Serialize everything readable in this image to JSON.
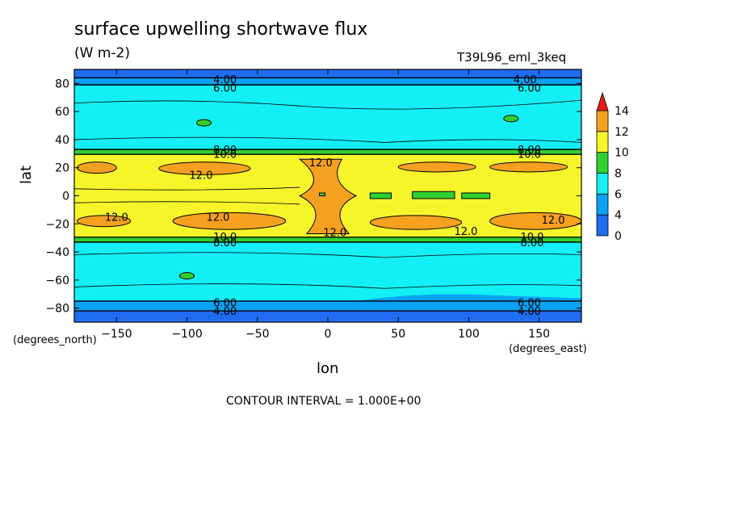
{
  "title": "surface upwelling shortwave flux",
  "units": "(W m-2)",
  "dataset": "T39L96_eml_3keq",
  "xlabel": "lon",
  "ylabel": "lat",
  "x_units": "(degrees_east)",
  "y_units": "(degrees_north)",
  "footer": "CONTOUR INTERVAL = 1.000E+00",
  "colors": {
    "c0_4": "#1f6cf0",
    "c4_6": "#0aa2f5",
    "c6_8": "#12f0f5",
    "c8_10": "#2fd12f",
    "c10_12": "#f5f52a",
    "c12_14": "#f5a01e",
    "c14plus": "#e81a1a"
  },
  "chart_data": {
    "type": "heatmap",
    "subtype": "filled contour map",
    "xlim": [
      -180,
      180
    ],
    "ylim": [
      -90,
      90
    ],
    "x_ticks": [
      -150,
      -100,
      -50,
      0,
      50,
      100,
      150
    ],
    "y_ticks": [
      -80,
      -60,
      -40,
      -20,
      0,
      20,
      40,
      60,
      80
    ],
    "colorbar": {
      "levels": [
        0,
        4,
        6,
        8,
        10,
        12,
        14
      ],
      "tick_labels": [
        "0",
        "4",
        "6",
        "8",
        "10",
        "12",
        "14"
      ]
    },
    "contour_labels": [
      {
        "text": "4.00",
        "x": -73,
        "y": 83
      },
      {
        "text": "6.00",
        "x": -73,
        "y": 77
      },
      {
        "text": "4.00",
        "x": 140,
        "y": 83
      },
      {
        "text": "6.00",
        "x": 143,
        "y": 77
      },
      {
        "text": "8.00",
        "x": -73,
        "y": 33
      },
      {
        "text": "10.0",
        "x": -73,
        "y": 30
      },
      {
        "text": "8.00",
        "x": 143,
        "y": 33
      },
      {
        "text": "10.0",
        "x": 143,
        "y": 30
      },
      {
        "text": "12.0",
        "x": -5,
        "y": 24
      },
      {
        "text": "12.0",
        "x": -90,
        "y": 15
      },
      {
        "text": "12.0",
        "x": -150,
        "y": -15
      },
      {
        "text": "12.0",
        "x": -78,
        "y": -15
      },
      {
        "text": "12.0",
        "x": 5,
        "y": -26
      },
      {
        "text": "12.0",
        "x": 98,
        "y": -25
      },
      {
        "text": "12.0",
        "x": 160,
        "y": -17
      },
      {
        "text": "10.0",
        "x": -73,
        "y": -29
      },
      {
        "text": "8.00",
        "x": -73,
        "y": -33
      },
      {
        "text": "10.0",
        "x": 145,
        "y": -29
      },
      {
        "text": "8.00",
        "x": 145,
        "y": -33
      },
      {
        "text": "6.00",
        "x": -73,
        "y": -76
      },
      {
        "text": "4.00",
        "x": -73,
        "y": -82
      },
      {
        "text": "6.00",
        "x": 143,
        "y": -76
      },
      {
        "text": "4.00",
        "x": 143,
        "y": -82
      }
    ]
  }
}
